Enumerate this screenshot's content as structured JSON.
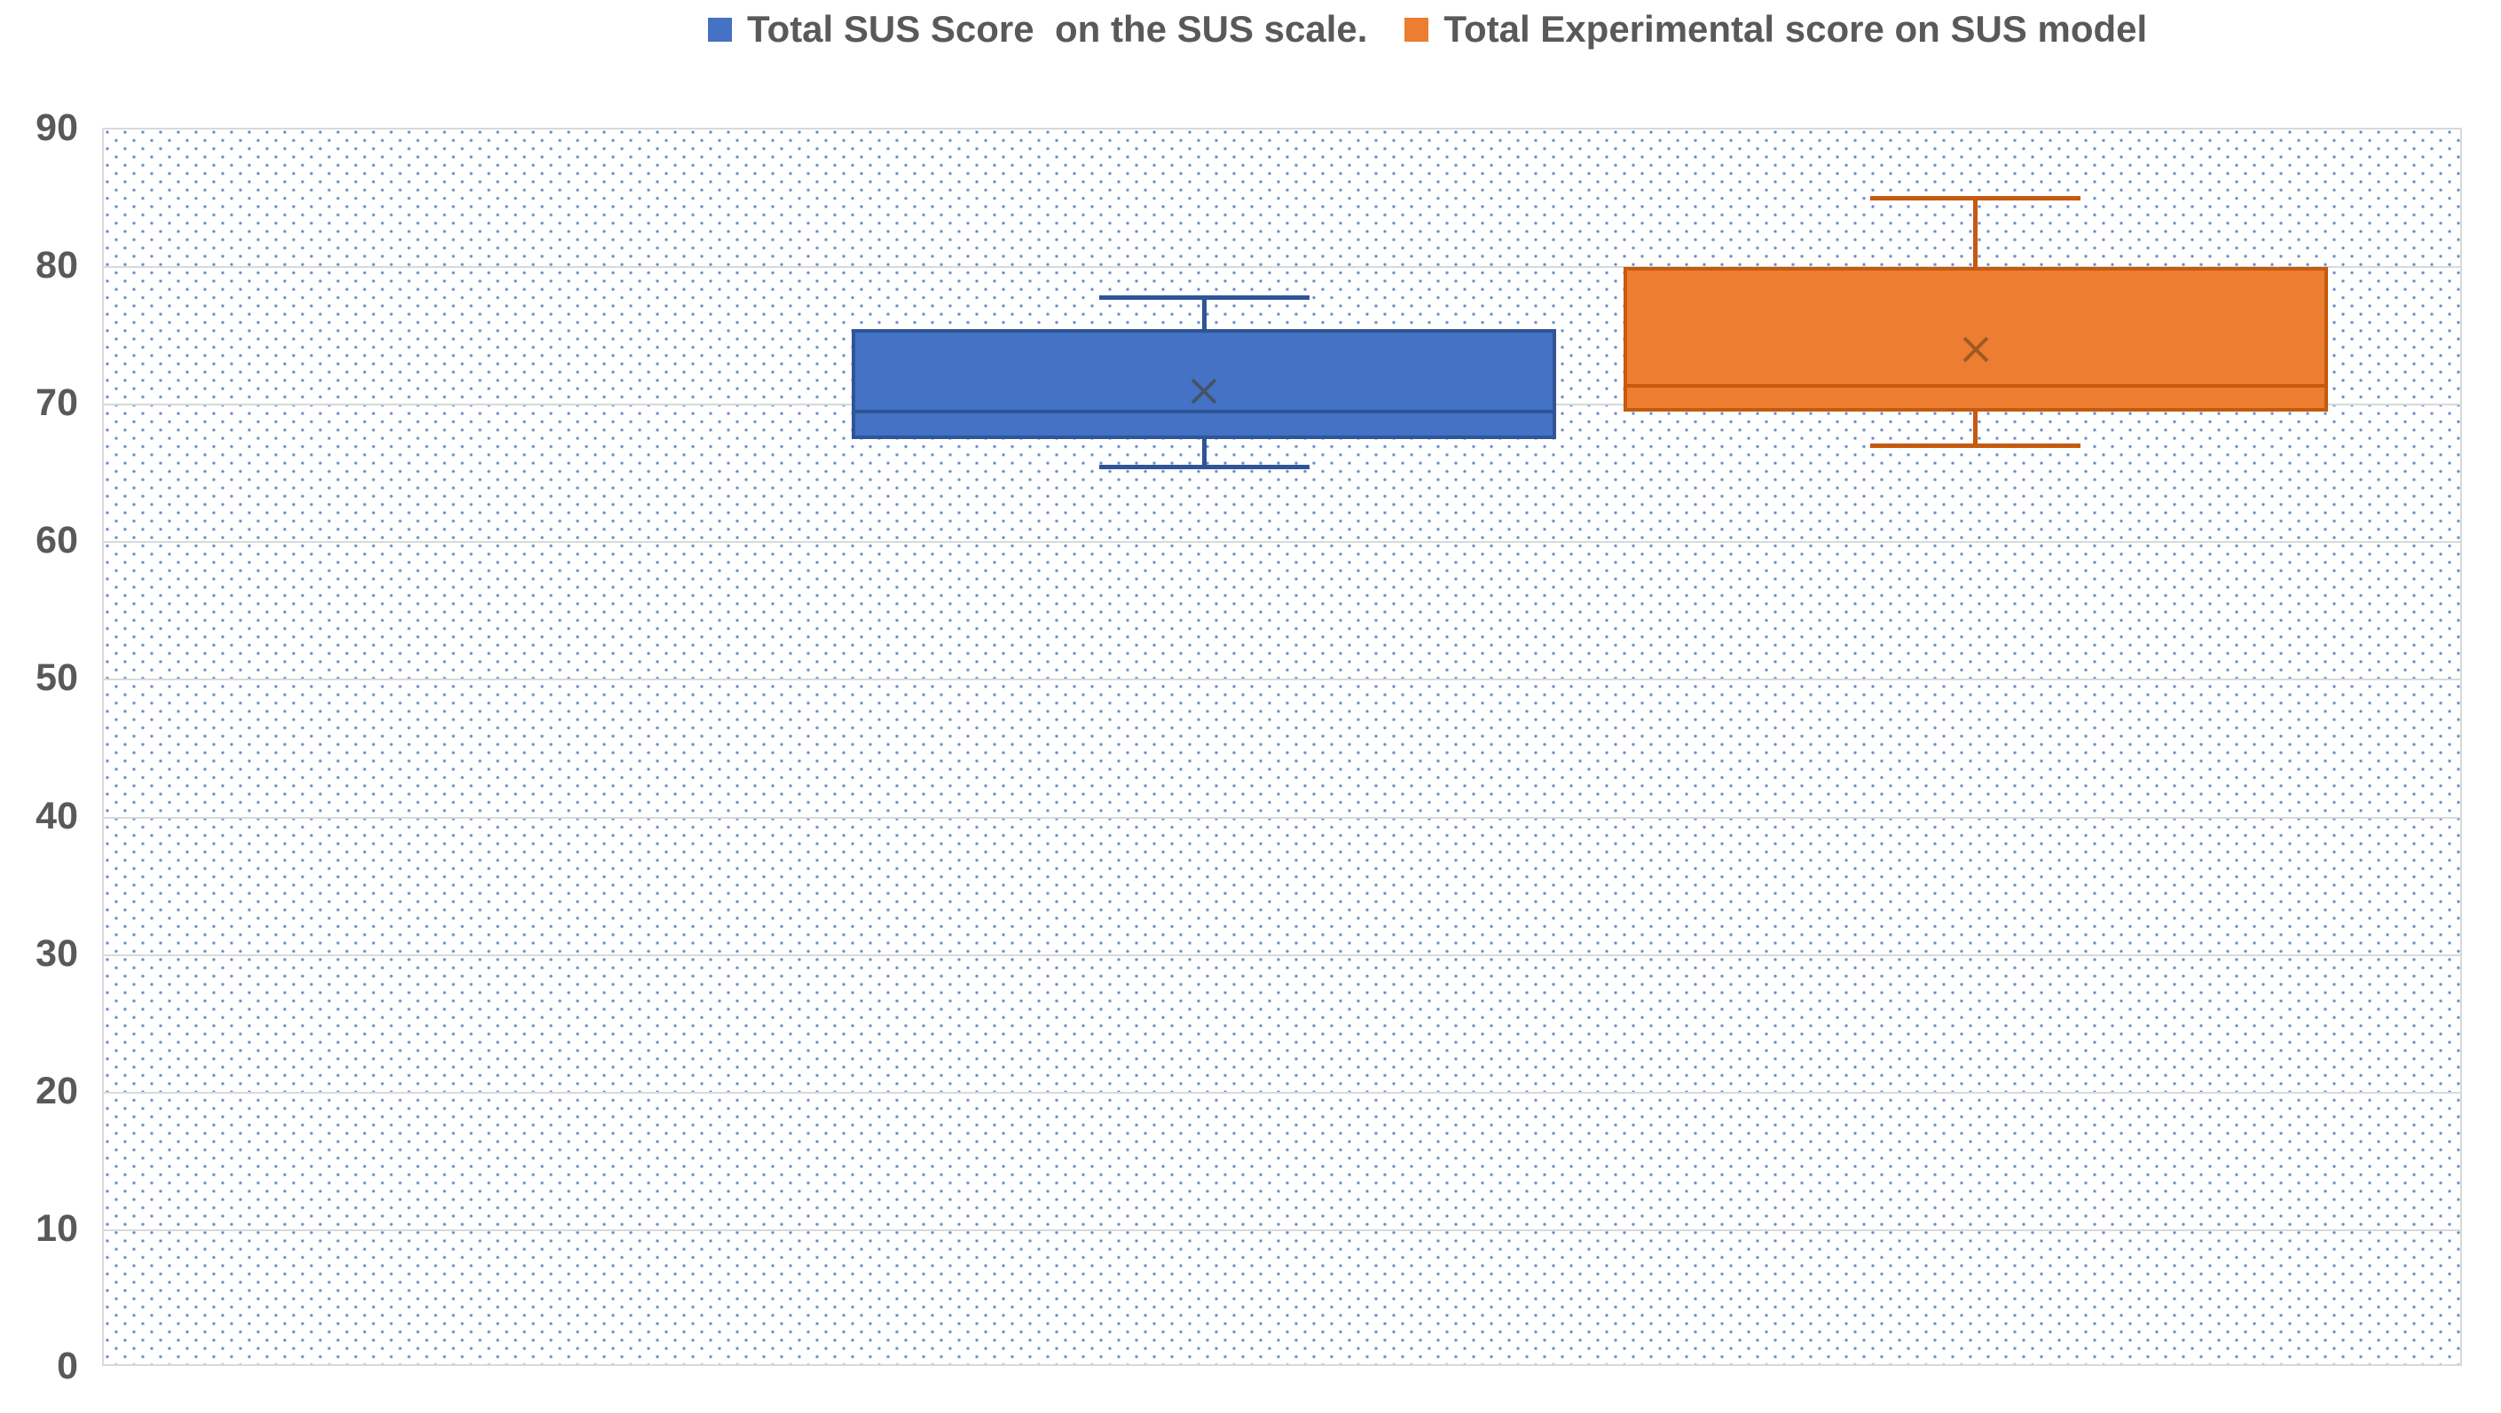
{
  "legend": {
    "items": [
      {
        "label": "Total SUS Score  on the SUS scale.",
        "color": "#4472C4"
      },
      {
        "label": "Total Experimental score on SUS model",
        "color": "#ED7D31"
      }
    ]
  },
  "axis": {
    "ymin": 0,
    "ymax": 90,
    "ticks": [
      0,
      10,
      20,
      30,
      40,
      50,
      60,
      70,
      80,
      90
    ]
  },
  "colors": {
    "gridline": "#D9D9D9",
    "plot_border": "#D9D9D9",
    "tick_label": "#595959",
    "pattern_dot": "#4472C4",
    "legend_text": "#595959"
  },
  "chart_data": {
    "type": "boxplot",
    "title": "",
    "xlabel": "",
    "ylabel": "",
    "ylim": [
      0,
      90
    ],
    "grid": true,
    "legend_position": "top",
    "series": [
      {
        "name": "Total SUS Score  on the SUS scale.",
        "fill": "#4472C4",
        "stroke": "#2F5597",
        "mean_marker_color": "#44546A",
        "min": 65.5,
        "q1": 67.5,
        "median": 69.5,
        "mean": 71,
        "q3": 75.5,
        "max": 77.8
      },
      {
        "name": "Total Experimental score on SUS model",
        "fill": "#ED7D31",
        "stroke": "#C55A11",
        "mean_marker_color": "#9E5B21",
        "min": 67,
        "q1": 69.5,
        "median": 71.4,
        "mean": 74,
        "q3": 80,
        "max": 85
      }
    ]
  }
}
